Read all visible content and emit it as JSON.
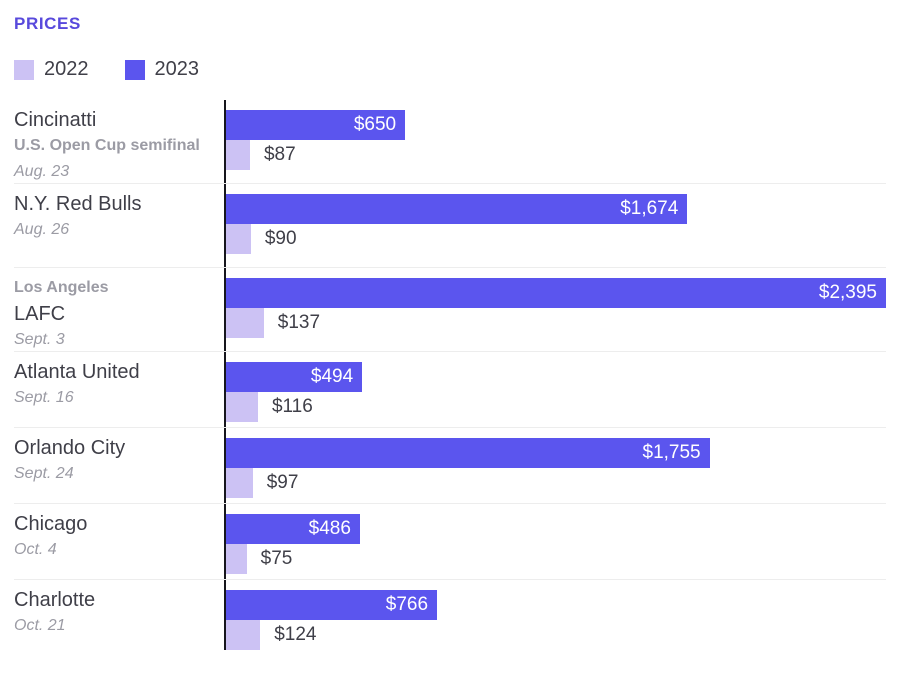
{
  "page": {
    "title": "PRICES"
  },
  "legend": [
    {
      "label": "2022",
      "color": "#CCC2F4"
    },
    {
      "label": "2023",
      "color": "#5B55EE"
    }
  ],
  "colors": {
    "title": "#5849DC",
    "bar_2023": "#5B55EE",
    "bar_2022": "#CCC2F4",
    "axis": "#16161D",
    "text_dark": "#3F3F48",
    "text_gray": "#9B9BA4",
    "divider": "#EDEDED"
  },
  "chart_data": {
    "type": "bar",
    "orientation": "horizontal",
    "title": "PRICES",
    "legend_position": "top",
    "series": [
      "2022",
      "2023"
    ],
    "x_max": 2395,
    "grid": false,
    "rows": [
      {
        "title": "Cincinatti",
        "subtitle": "U.S. Open Cup semifinal",
        "date": "Aug. 23",
        "price_2023": 650,
        "price_2023_label": "$650",
        "price_2022": 87,
        "price_2022_label": "$87"
      },
      {
        "title": "N.Y. Red Bulls",
        "date": "Aug. 26",
        "price_2023": 1674,
        "price_2023_label": "$1,674",
        "price_2022": 90,
        "price_2022_label": "$90"
      },
      {
        "pretitle": "Los Angeles",
        "title": "LAFC",
        "date": "Sept. 3",
        "price_2023": 2395,
        "price_2023_label": "$2,395",
        "price_2022": 137,
        "price_2022_label": "$137"
      },
      {
        "title": "Atlanta United",
        "date": "Sept. 16",
        "price_2023": 494,
        "price_2023_label": "$494",
        "price_2022": 116,
        "price_2022_label": "$116"
      },
      {
        "title": "Orlando City",
        "date": "Sept. 24",
        "price_2023": 1755,
        "price_2023_label": "$1,755",
        "price_2022": 97,
        "price_2022_label": "$97"
      },
      {
        "title": "Chicago",
        "date": "Oct. 4",
        "price_2023": 486,
        "price_2023_label": "$486",
        "price_2022": 75,
        "price_2022_label": "$75"
      },
      {
        "title": "Charlotte",
        "date": "Oct. 21",
        "price_2023": 766,
        "price_2023_label": "$766",
        "price_2022": 124,
        "price_2022_label": "$124"
      }
    ]
  }
}
